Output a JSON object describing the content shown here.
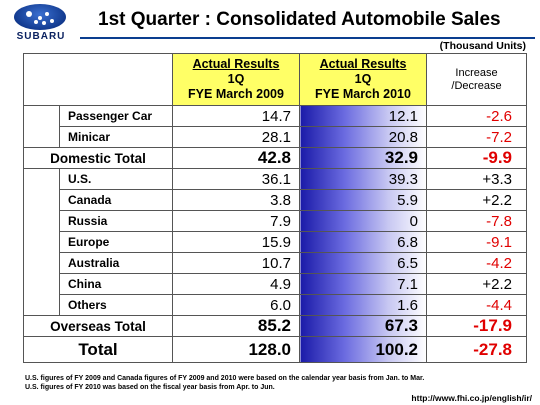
{
  "header": {
    "logo_text": "SUBARU",
    "title": "1st Quarter : Consolidated Automobile Sales",
    "units": "(Thousand Units)"
  },
  "table": {
    "col_2009": [
      "Actual Results",
      "1Q",
      "FYE March 2009"
    ],
    "col_2010": [
      "Actual Results",
      "1Q",
      "FYE March 2010"
    ],
    "col_diff": [
      "Increase",
      "/Decrease"
    ],
    "domestic": [
      {
        "label": "Passenger Car",
        "v2009": "14.7",
        "v2010": "12.1",
        "diff": "-2.6"
      },
      {
        "label": "Minicar",
        "v2009": "28.1",
        "v2010": "20.8",
        "diff": "-7.2"
      }
    ],
    "domestic_total": {
      "label": "Domestic Total",
      "v2009": "42.8",
      "v2010": "32.9",
      "diff": "-9.9"
    },
    "overseas": [
      {
        "label": "U.S.",
        "v2009": "36.1",
        "v2010": "39.3",
        "diff": "+3.3"
      },
      {
        "label": "Canada",
        "v2009": "3.8",
        "v2010": "5.9",
        "diff": "+2.2"
      },
      {
        "label": "Russia",
        "v2009": "7.9",
        "v2010": "0",
        "diff": "-7.8"
      },
      {
        "label": "Europe",
        "v2009": "15.9",
        "v2010": "6.8",
        "diff": "-9.1"
      },
      {
        "label": "Australia",
        "v2009": "10.7",
        "v2010": "6.5",
        "diff": "-4.2"
      },
      {
        "label": "China",
        "v2009": "4.9",
        "v2010": "7.1",
        "diff": "+2.2"
      },
      {
        "label": "Others",
        "v2009": "6.0",
        "v2010": "1.6",
        "diff": "-4.4"
      }
    ],
    "overseas_total": {
      "label": "Overseas Total",
      "v2009": "85.2",
      "v2010": "67.3",
      "diff": "-17.9"
    },
    "grand_total": {
      "label": "Total",
      "v2009": "128.0",
      "v2010": "100.2",
      "diff": "-27.8"
    }
  },
  "footnotes": [
    "U.S. figures of FY 2009 and Canada figures of FY 2009 and 2010 were based on the calendar year basis from Jan. to Mar.",
    "U.S. figures of FY 2010 was based on the fiscal year basis from Apr. to Jun."
  ],
  "url": "http://www.fhi.co.jp/english/ir/",
  "colors": {
    "brand_blue": "#0a3d8f",
    "header_yellow": "#ffff66",
    "negative_red": "#e00000"
  }
}
